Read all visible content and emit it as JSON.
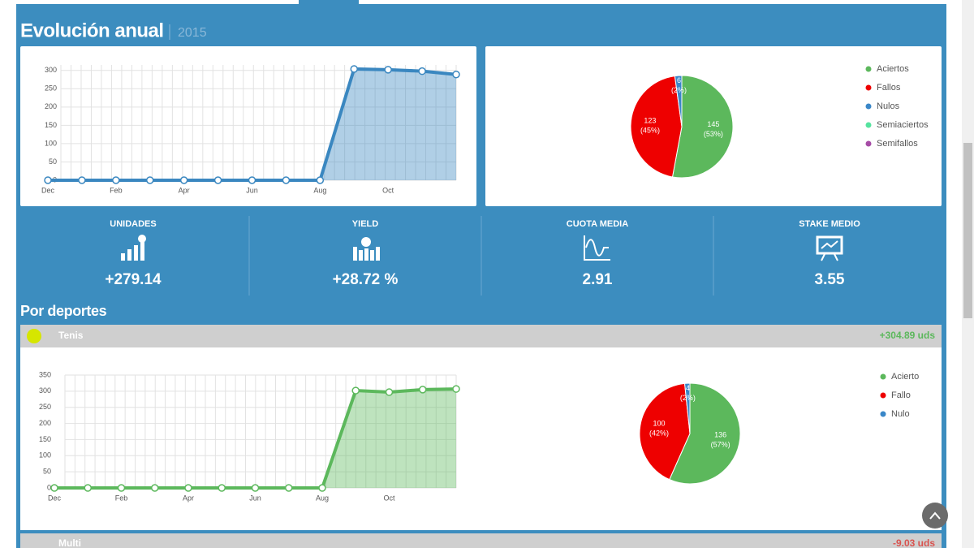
{
  "section": {
    "title": "Evolución anual",
    "year": "2015"
  },
  "chart_data": [
    {
      "type": "line",
      "categories": [
        "Dec",
        null,
        "Feb",
        null,
        "Apr",
        null,
        "Jun",
        null,
        "Aug",
        null,
        "Oct",
        null,
        null
      ],
      "values": [
        0,
        0,
        0,
        0,
        0,
        0,
        0,
        0,
        0,
        304,
        302,
        298,
        289
      ],
      "color": "#3a87c0",
      "ylim": [
        0,
        315
      ],
      "yticks": [
        0,
        50,
        100,
        150,
        200,
        250,
        300
      ],
      "grid": true
    },
    {
      "type": "pie",
      "categories": [
        "Aciertos",
        "Fallos",
        "Nulos",
        "Semiaciertos",
        "Semifallos"
      ],
      "values": [
        145,
        123,
        6,
        0,
        0
      ],
      "percent_labels": [
        "(53%)",
        "(45%)",
        "(2%)",
        null,
        null
      ],
      "colors": [
        "#5cb85c",
        "#ee0000",
        "#3a87c8",
        "#56e39f",
        "#a64ca6"
      ]
    },
    {
      "type": "line",
      "categories": [
        "Dec",
        null,
        "Feb",
        null,
        "Apr",
        null,
        "Jun",
        null,
        "Aug",
        null,
        "Oct",
        null,
        null
      ],
      "values": [
        0,
        0,
        0,
        0,
        0,
        0,
        0,
        0,
        0,
        302,
        297,
        305,
        307
      ],
      "color": "#5cb85c",
      "ylim": [
        0,
        350
      ],
      "yticks": [
        0,
        50,
        100,
        150,
        200,
        250,
        300,
        350
      ],
      "grid": true
    },
    {
      "type": "pie",
      "categories": [
        "Acierto",
        "Fallo",
        "Nulo"
      ],
      "values": [
        136,
        100,
        4
      ],
      "percent_labels": [
        "(57%)",
        "(42%)",
        "(2%)"
      ],
      "colors": [
        "#5cb85c",
        "#ee0000",
        "#3a87c8"
      ]
    }
  ],
  "stats": [
    {
      "label": "UNIDADES",
      "value": "+279.14"
    },
    {
      "label": "YIELD",
      "value": "+28.72 %"
    },
    {
      "label": "CUOTA MEDIA",
      "value": "2.91"
    },
    {
      "label": "STAKE MEDIO",
      "value": "3.55"
    }
  ],
  "sports_title": "Por deportes",
  "sports": [
    {
      "name": "Tenis",
      "units": "+304.89 uds"
    },
    {
      "name": "Multi",
      "units": "-9.03 uds"
    }
  ]
}
